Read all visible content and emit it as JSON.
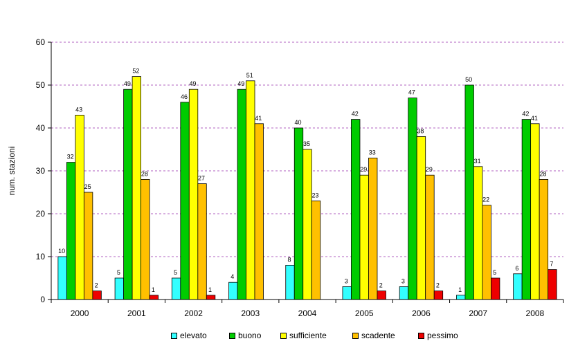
{
  "chart_data": {
    "type": "bar",
    "title": "",
    "xlabel": "",
    "ylabel": "num. stazioni",
    "ylim": [
      0,
      60
    ],
    "yticks": [
      "0",
      "10",
      "20",
      "30",
      "40",
      "50",
      "60"
    ],
    "grid": true,
    "legend_position": "bottom",
    "categories": [
      "2000",
      "2001",
      "2002",
      "2003",
      "2004",
      "2005",
      "2006",
      "2007",
      "2008"
    ],
    "series": [
      {
        "name": "elevato",
        "color": "#33ffff",
        "values": [
          10,
          5,
          5,
          4,
          8,
          3,
          3,
          1,
          6
        ]
      },
      {
        "name": "buono",
        "color": "#00cc00",
        "values": [
          32,
          49,
          46,
          49,
          40,
          42,
          47,
          50,
          42
        ]
      },
      {
        "name": "sufficiente",
        "color": "#ffff00",
        "values": [
          43,
          52,
          49,
          51,
          35,
          29,
          38,
          31,
          41
        ]
      },
      {
        "name": "scadente",
        "color": "#ffc000",
        "values": [
          25,
          28,
          27,
          41,
          23,
          33,
          29,
          22,
          28
        ]
      },
      {
        "name": "pessimo",
        "color": "#ee0000",
        "values": [
          2,
          1,
          1,
          null,
          null,
          2,
          2,
          5,
          7
        ]
      }
    ]
  }
}
